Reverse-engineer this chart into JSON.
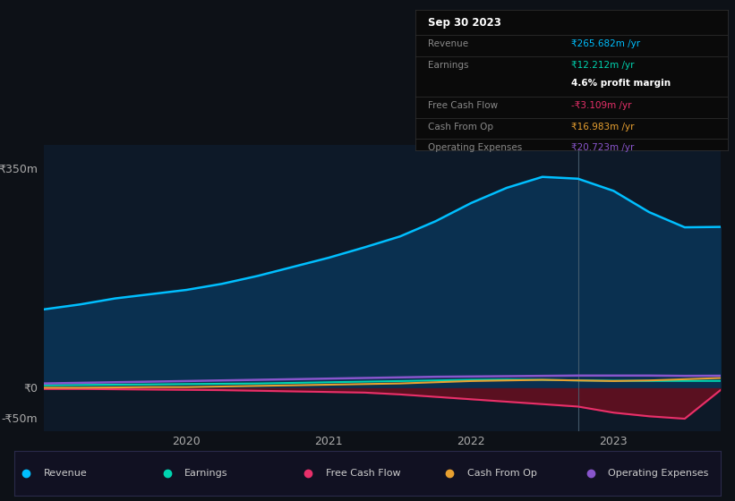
{
  "background_color": "#0d1117",
  "plot_bg_color": "#0d1928",
  "x_years": [
    2019.0,
    2019.25,
    2019.5,
    2019.75,
    2020.0,
    2020.25,
    2020.5,
    2020.75,
    2021.0,
    2021.25,
    2021.5,
    2021.75,
    2022.0,
    2022.25,
    2022.5,
    2022.75,
    2023.0,
    2023.25,
    2023.5,
    2023.75
  ],
  "revenue": [
    130,
    138,
    148,
    155,
    162,
    172,
    185,
    200,
    215,
    232,
    250,
    275,
    305,
    330,
    348,
    345,
    325,
    290,
    265,
    265.682
  ],
  "earnings": [
    5,
    5.5,
    6,
    6.5,
    7,
    7.5,
    8,
    9,
    10,
    11,
    12,
    13,
    14,
    14.5,
    14,
    13,
    12.5,
    12.2,
    12.212,
    12.212
  ],
  "free_cash_flow": [
    -1,
    -1,
    -1.5,
    -2,
    -2.5,
    -3,
    -4,
    -5,
    -6,
    -7,
    -10,
    -14,
    -18,
    -22,
    -26,
    -30,
    -40,
    -46,
    -50,
    -3.109
  ],
  "cash_from_op": [
    1,
    1,
    1.5,
    2,
    2,
    3,
    4,
    5,
    6,
    7,
    8,
    10,
    12,
    13,
    14,
    13,
    12,
    13,
    15,
    16.983
  ],
  "operating_expenses": [
    8,
    9,
    10,
    11,
    12,
    13,
    14,
    15,
    16,
    17,
    18,
    19,
    19.5,
    20,
    20.5,
    21,
    21,
    21,
    20.5,
    20.723
  ],
  "revenue_color": "#00bfff",
  "revenue_fill_color": "#0a3050",
  "earnings_color": "#00d4b0",
  "free_cash_flow_color": "#e8306a",
  "cash_from_op_color": "#e8a030",
  "operating_expenses_color": "#8855cc",
  "free_cash_flow_fill_color": "#5a1020",
  "ylim_min": -70,
  "ylim_max": 400,
  "vline_x": 2022.75,
  "xtick_positions": [
    2020,
    2021,
    2022,
    2023
  ],
  "xticklabels": [
    "2020",
    "2021",
    "2022",
    "2023"
  ],
  "info_box": {
    "date": "Sep 30 2023",
    "revenue_label": "Revenue",
    "revenue_value": "₹265.682m /yr",
    "earnings_label": "Earnings",
    "earnings_value": "₹12.212m /yr",
    "profit_margin": "4.6% profit margin",
    "fcf_label": "Free Cash Flow",
    "fcf_value": "-₹3.109m /yr",
    "cop_label": "Cash From Op",
    "cop_value": "₹16.983m /yr",
    "opex_label": "Operating Expenses",
    "opex_value": "₹20.723m /yr"
  },
  "legend": [
    {
      "label": "Revenue",
      "color": "#00bfff"
    },
    {
      "label": "Earnings",
      "color": "#00d4b0"
    },
    {
      "label": "Free Cash Flow",
      "color": "#e8306a"
    },
    {
      "label": "Cash From Op",
      "color": "#e8a030"
    },
    {
      "label": "Operating Expenses",
      "color": "#8855cc"
    }
  ]
}
